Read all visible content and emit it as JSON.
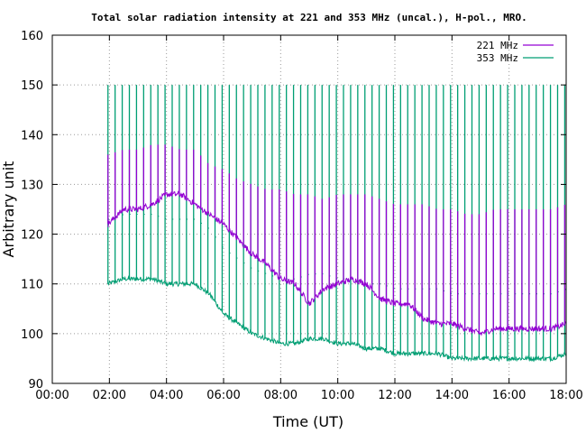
{
  "chart_data": {
    "type": "line",
    "title": "Total solar radiation intensity at 221 and 353 MHz (uncal.), H-pol., MRO.",
    "xlabel": "Time (UT)",
    "ylabel": "Arbitrary unit",
    "xlim": [
      0,
      18
    ],
    "ylim": [
      90,
      160
    ],
    "x_ticks": [
      "00:00",
      "02:00",
      "04:00",
      "06:00",
      "08:00",
      "10:00",
      "12:00",
      "14:00",
      "16:00",
      "18:00"
    ],
    "y_ticks": [
      90,
      100,
      110,
      120,
      130,
      140,
      150,
      160
    ],
    "grid": true,
    "legend_position": "top-right",
    "data_start_hour": 1.95,
    "calibration_pulse_interval_hours": 0.25,
    "series": [
      {
        "name": "221 MHz",
        "color": "#9400d3",
        "x": [
          1.95,
          2.5,
          3.0,
          3.5,
          4.0,
          4.5,
          5.0,
          5.5,
          6.0,
          6.5,
          7.0,
          7.5,
          8.0,
          8.5,
          9.0,
          9.5,
          10.0,
          10.5,
          11.0,
          11.5,
          12.0,
          12.5,
          13.0,
          13.5,
          14.0,
          14.5,
          15.0,
          15.5,
          16.0,
          16.5,
          17.0,
          17.5,
          18.0
        ],
        "y": [
          122,
          125,
          125,
          126,
          128,
          128,
          126,
          124,
          122,
          119,
          116,
          114,
          111,
          110,
          106,
          109,
          110,
          111,
          110,
          107,
          106,
          106,
          103,
          102,
          102,
          101,
          100,
          101,
          101,
          101,
          101,
          101,
          102
        ],
        "pulse_peak_y": [
          136,
          137,
          137,
          138,
          138,
          137,
          137,
          134,
          133,
          131,
          130,
          129,
          129,
          128,
          128,
          127,
          128,
          128,
          128,
          127,
          126,
          126,
          126,
          125,
          125,
          124,
          124,
          125,
          125,
          125,
          125,
          125,
          126
        ]
      },
      {
        "name": "353 MHz",
        "color": "#009e73",
        "x": [
          1.95,
          2.5,
          3.0,
          3.5,
          4.0,
          4.5,
          5.0,
          5.5,
          6.0,
          6.5,
          7.0,
          7.5,
          8.0,
          8.5,
          9.0,
          9.5,
          10.0,
          10.5,
          11.0,
          11.5,
          12.0,
          12.5,
          13.0,
          13.5,
          14.0,
          14.5,
          15.0,
          15.5,
          16.0,
          16.5,
          17.0,
          17.5,
          18.0
        ],
        "y": [
          110,
          111,
          111,
          111,
          110,
          110,
          110,
          108,
          104,
          102,
          100,
          99,
          98,
          98,
          99,
          99,
          98,
          98,
          97,
          97,
          96,
          96,
          96,
          96,
          95,
          95,
          95,
          95,
          95,
          95,
          95,
          95,
          96
        ],
        "pulse_peak_y": [
          150,
          150,
          150,
          150,
          150,
          150,
          150,
          150,
          150,
          150,
          150,
          150,
          150,
          150,
          150,
          150,
          150,
          150,
          150,
          150,
          150,
          150,
          150,
          150,
          150,
          150,
          150,
          150,
          150,
          150,
          150,
          150,
          150
        ]
      }
    ]
  }
}
